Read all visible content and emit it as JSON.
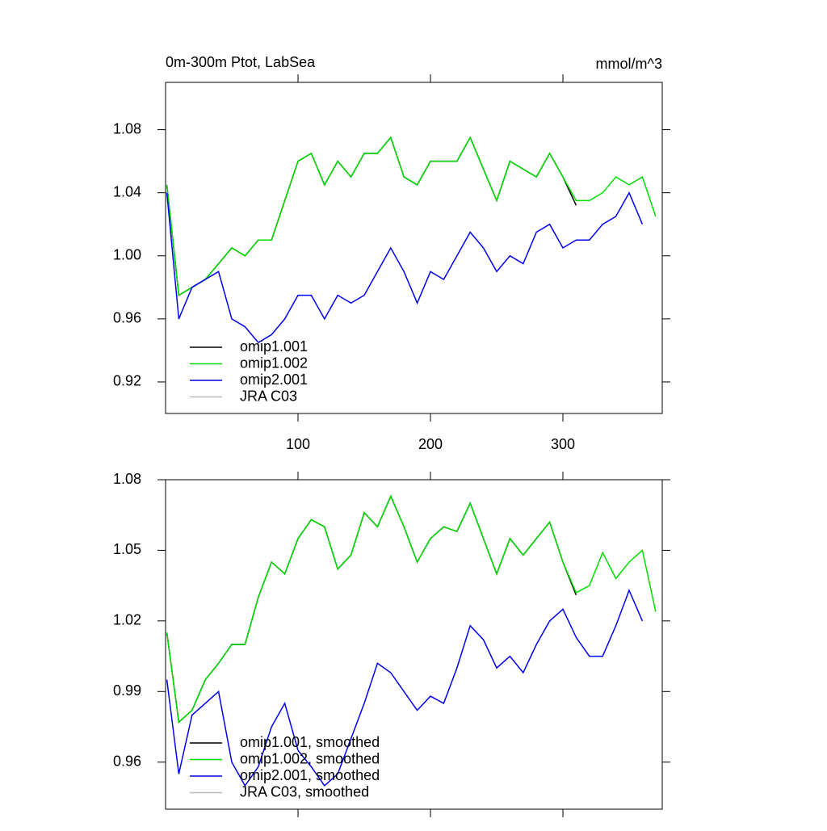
{
  "chart_data": [
    {
      "type": "line",
      "title": "0m-300m Ptot, LabSea",
      "units": "mmol/m^3",
      "x": [
        1,
        10,
        20,
        30,
        40,
        50,
        60,
        70,
        80,
        90,
        100,
        110,
        120,
        130,
        140,
        150,
        160,
        170,
        180,
        190,
        200,
        210,
        220,
        230,
        240,
        250,
        260,
        270,
        280,
        290,
        300,
        310,
        320,
        330,
        340,
        350,
        360,
        370
      ],
      "xlim": [
        0,
        375
      ],
      "xticks": [
        100,
        200,
        300
      ],
      "ylim": [
        0.9,
        1.11
      ],
      "yticks": [
        0.92,
        0.96,
        {
          "value": 1,
          "label": "1.00"
        },
        1.04,
        1.08
      ],
      "legend": "lower left",
      "series": [
        {
          "name": "omip1.001",
          "color": "#000000",
          "values": [
            1.045,
            0.975,
            0.98,
            0.985,
            0.995,
            1.005,
            1.0,
            1.01,
            1.01,
            1.035,
            1.06,
            1.065,
            1.045,
            1.06,
            1.05,
            1.065,
            1.065,
            1.075,
            1.05,
            1.045,
            1.06,
            1.06,
            1.06,
            1.075,
            1.055,
            1.035,
            1.06,
            1.055,
            1.05,
            1.065,
            1.05,
            1.032,
            null,
            null,
            null,
            null,
            null,
            null
          ]
        },
        {
          "name": "omip1.002",
          "color": "#00dd00",
          "values": [
            1.045,
            0.975,
            0.98,
            0.985,
            0.995,
            1.005,
            1.0,
            1.01,
            1.01,
            1.035,
            1.06,
            1.065,
            1.045,
            1.06,
            1.05,
            1.065,
            1.065,
            1.075,
            1.05,
            1.045,
            1.06,
            1.06,
            1.06,
            1.075,
            1.055,
            1.035,
            1.06,
            1.055,
            1.05,
            1.065,
            1.05,
            1.035,
            1.035,
            1.04,
            1.05,
            1.045,
            1.05,
            1.025
          ]
        },
        {
          "name": "omip2.001",
          "color": "#0000ee",
          "values": [
            1.04,
            0.96,
            0.98,
            0.985,
            0.99,
            0.96,
            0.955,
            0.945,
            0.95,
            0.96,
            0.975,
            0.975,
            0.96,
            0.975,
            0.97,
            0.975,
            0.99,
            1.005,
            0.99,
            0.97,
            0.99,
            0.985,
            1.0,
            1.015,
            1.005,
            0.99,
            1.0,
            0.995,
            1.015,
            1.02,
            1.005,
            1.01,
            1.01,
            1.02,
            1.025,
            1.04,
            1.02,
            null
          ]
        },
        {
          "name": "JRA C03",
          "color": "#bbbbbb",
          "values": [
            null,
            null,
            null,
            null,
            null,
            null,
            null,
            null,
            null,
            null,
            null,
            null,
            null,
            null,
            null,
            null,
            null,
            null,
            null,
            null,
            null,
            null,
            null,
            null,
            null,
            null,
            null,
            null,
            null,
            null,
            null,
            null,
            null,
            null,
            null,
            null,
            null,
            null
          ]
        }
      ]
    },
    {
      "type": "line",
      "x": [
        1,
        10,
        20,
        30,
        40,
        50,
        60,
        70,
        80,
        90,
        100,
        110,
        120,
        130,
        140,
        150,
        160,
        170,
        180,
        190,
        200,
        210,
        220,
        230,
        240,
        250,
        260,
        270,
        280,
        290,
        300,
        310,
        320,
        330,
        340,
        350,
        360,
        370
      ],
      "xlim": [
        0,
        375
      ],
      "xticks": [
        100,
        200,
        300
      ],
      "ylim": [
        0.94,
        1.08
      ],
      "yticks": [
        0.96,
        0.99,
        1.02,
        1.05,
        1.08
      ],
      "legend": "lower left",
      "series": [
        {
          "name": "omip1.001, smoothed",
          "color": "#000000",
          "values": [
            1.015,
            0.977,
            0.982,
            0.995,
            1.002,
            1.01,
            1.01,
            1.03,
            1.045,
            1.04,
            1.055,
            1.063,
            1.06,
            1.042,
            1.048,
            1.066,
            1.06,
            1.073,
            1.06,
            1.045,
            1.055,
            1.06,
            1.058,
            1.07,
            1.055,
            1.04,
            1.055,
            1.048,
            1.055,
            1.062,
            1.045,
            1.031,
            null,
            null,
            null,
            null,
            null,
            null
          ]
        },
        {
          "name": "omip1.002, smoothed",
          "color": "#00dd00",
          "values": [
            1.015,
            0.977,
            0.982,
            0.995,
            1.002,
            1.01,
            1.01,
            1.03,
            1.045,
            1.04,
            1.055,
            1.063,
            1.06,
            1.042,
            1.048,
            1.066,
            1.06,
            1.073,
            1.06,
            1.045,
            1.055,
            1.06,
            1.058,
            1.07,
            1.055,
            1.04,
            1.055,
            1.048,
            1.055,
            1.062,
            1.045,
            1.032,
            1.035,
            1.049,
            1.038,
            1.045,
            1.05,
            1.024
          ]
        },
        {
          "name": "omip2.001, smoothed",
          "color": "#0000ee",
          "values": [
            0.995,
            0.955,
            0.98,
            0.985,
            0.99,
            0.96,
            0.95,
            0.958,
            0.975,
            0.985,
            0.965,
            0.958,
            0.95,
            0.955,
            0.97,
            0.985,
            1.002,
            0.998,
            0.99,
            0.982,
            0.988,
            0.985,
            1.0,
            1.018,
            1.012,
            1.0,
            1.005,
            0.998,
            1.01,
            1.02,
            1.025,
            1.013,
            1.005,
            1.005,
            1.018,
            1.033,
            1.02,
            null
          ]
        },
        {
          "name": "JRA C03, smoothed",
          "color": "#bbbbbb",
          "values": [
            null,
            null,
            null,
            null,
            null,
            null,
            null,
            null,
            null,
            null,
            null,
            null,
            null,
            null,
            null,
            null,
            null,
            null,
            null,
            null,
            null,
            null,
            null,
            null,
            null,
            null,
            null,
            null,
            null,
            null,
            null,
            null,
            null,
            null,
            null,
            null,
            null,
            null
          ]
        }
      ]
    }
  ]
}
